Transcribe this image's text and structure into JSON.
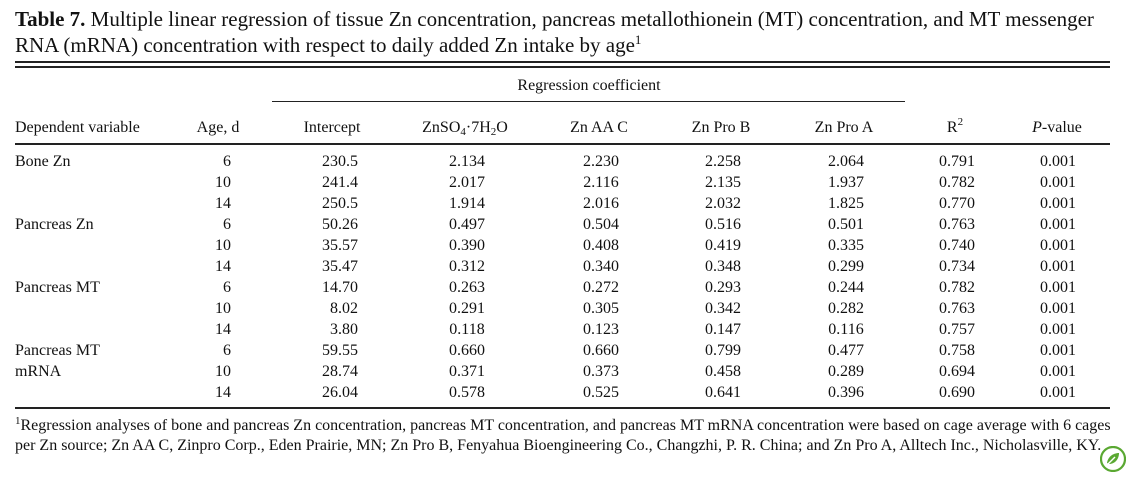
{
  "caption": {
    "label": "Table 7.",
    "text": " Multiple linear regression of tissue Zn concentration, pancreas metallothionein (MT) concentration, and MT messenger RNA (mRNA) concentration with respect to daily added Zn intake by age",
    "marker": "1"
  },
  "header": {
    "group_label": "Regression coefficient",
    "dependent_variable": "Dependent variable",
    "age": "Age, d",
    "intercept": "Intercept",
    "znso4_a": "ZnSO",
    "znso4_b": "4",
    "znso4_c": "·7H",
    "znso4_d": "2",
    "znso4_e": "O",
    "zn_aa_c": "Zn AA C",
    "zn_pro_b": "Zn Pro B",
    "zn_pro_a": "Zn Pro A",
    "r2_a": "R",
    "r2_b": "2",
    "pvalue_a": "P",
    "pvalue_b": "-value"
  },
  "groups": [
    {
      "label_line1": "Bone Zn",
      "label_line2": ""
    },
    {
      "label_line1": "Pancreas Zn",
      "label_line2": ""
    },
    {
      "label_line1": "Pancreas MT",
      "label_line2": ""
    },
    {
      "label_line1": "Pancreas MT",
      "label_line2": "mRNA"
    }
  ],
  "rows": [
    [
      "6",
      "230.5",
      "2.134",
      "2.230",
      "2.258",
      "2.064",
      "0.791",
      "0.001"
    ],
    [
      "10",
      "241.4",
      "2.017",
      "2.116",
      "2.135",
      "1.937",
      "0.782",
      "0.001"
    ],
    [
      "14",
      "250.5",
      "1.914",
      "2.016",
      "2.032",
      "1.825",
      "0.770",
      "0.001"
    ],
    [
      "6",
      "50.26",
      "0.497",
      "0.504",
      "0.516",
      "0.501",
      "0.763",
      "0.001"
    ],
    [
      "10",
      "35.57",
      "0.390",
      "0.408",
      "0.419",
      "0.335",
      "0.740",
      "0.001"
    ],
    [
      "14",
      "35.47",
      "0.312",
      "0.340",
      "0.348",
      "0.299",
      "0.734",
      "0.001"
    ],
    [
      "6",
      "14.70",
      "0.263",
      "0.272",
      "0.293",
      "0.244",
      "0.782",
      "0.001"
    ],
    [
      "10",
      "8.02",
      "0.291",
      "0.305",
      "0.342",
      "0.282",
      "0.763",
      "0.001"
    ],
    [
      "14",
      "3.80",
      "0.118",
      "0.123",
      "0.147",
      "0.116",
      "0.757",
      "0.001"
    ],
    [
      "6",
      "59.55",
      "0.660",
      "0.660",
      "0.799",
      "0.477",
      "0.758",
      "0.001"
    ],
    [
      "10",
      "28.74",
      "0.371",
      "0.373",
      "0.458",
      "0.289",
      "0.694",
      "0.001"
    ],
    [
      "14",
      "26.04",
      "0.578",
      "0.525",
      "0.641",
      "0.396",
      "0.690",
      "0.001"
    ]
  ],
  "footnote": {
    "marker": "1",
    "text": "Regression analyses of bone and pancreas Zn concentration, pancreas MT concentration, and pancreas MT mRNA concentration were based on cage average with 6 cages per Zn source; Zn AA C, Zinpro Corp., Eden Prairie, MN; Zn Pro B, Fenyahua Bioengineering Co., Changzhi, P. R. China; and Zn Pro A, Alltech Inc., Nicholasville, KY."
  },
  "logo": {
    "icon": "leaf-logo-icon",
    "color": "#5aa832"
  }
}
